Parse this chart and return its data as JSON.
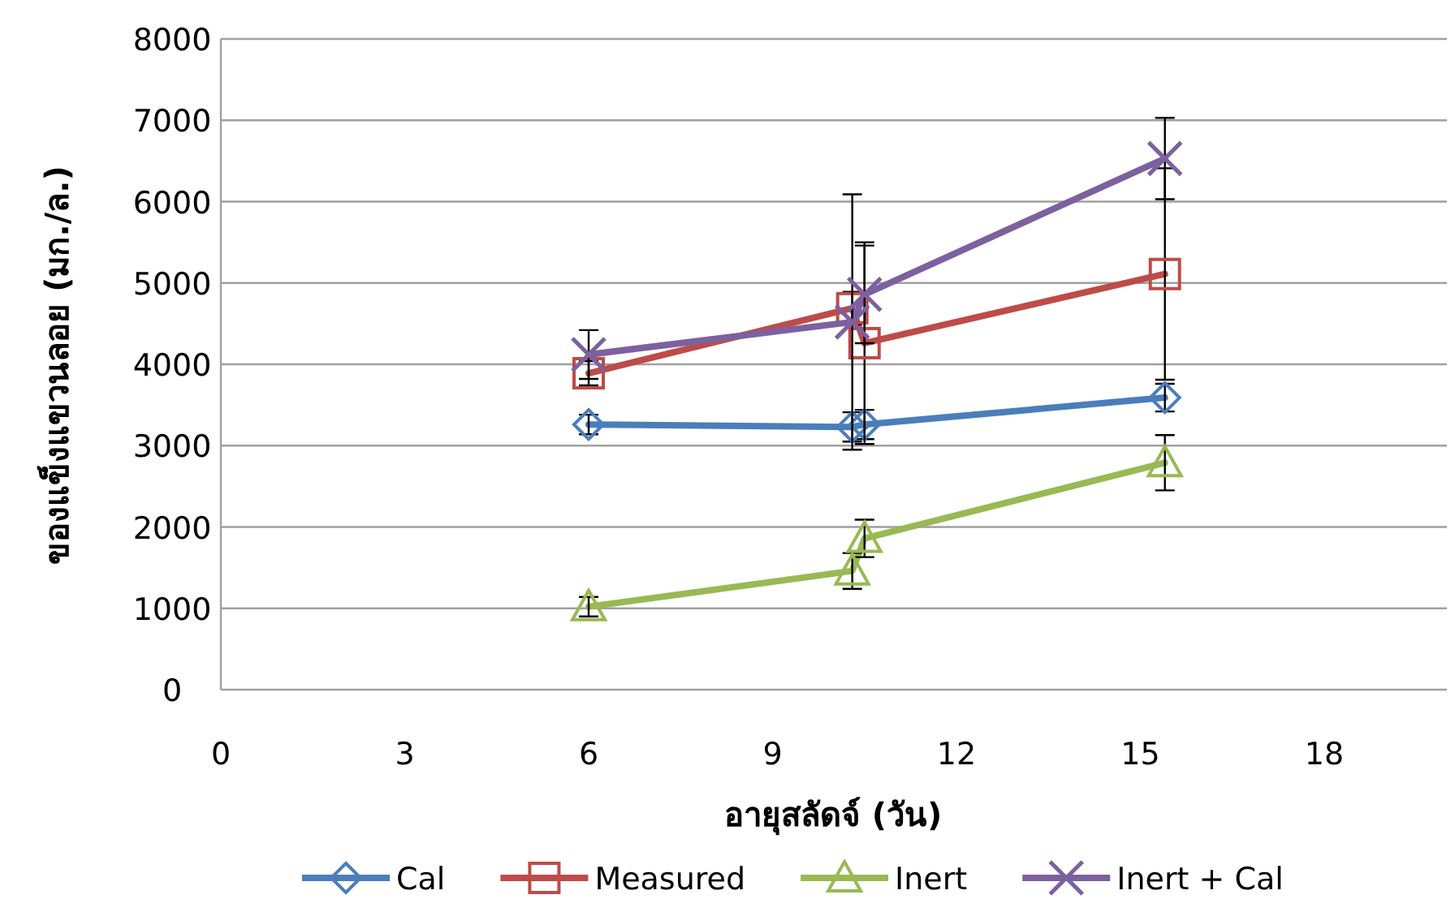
{
  "chart_data": {
    "type": "line",
    "xlabel": "อายุสลัดจ์ (วัน)",
    "ylabel": "ของแข็งแขวนลอย (มก./ล.)",
    "xlim": [
      0,
      20
    ],
    "ylim": [
      0,
      8000
    ],
    "xticks": [
      0,
      3,
      6,
      9,
      12,
      15,
      18
    ],
    "yticks": [
      0,
      1000,
      2000,
      3000,
      4000,
      5000,
      6000,
      7000,
      8000
    ],
    "grid": "y",
    "legend": "bottom",
    "line_style": "solid",
    "series": [
      {
        "name": "Cal",
        "color": "#4a7ebb",
        "marker": "diamond",
        "x": [
          6,
          10.3,
          10.5,
          15.4
        ],
        "values": [
          3260,
          3230,
          3260,
          3590
        ],
        "errors": [
          120,
          180,
          180,
          170
        ]
      },
      {
        "name": "Measured",
        "color": "#be4b48",
        "marker": "square",
        "x": [
          6,
          10.3,
          10.5,
          15.4
        ],
        "values": [
          3890,
          4690,
          4260,
          5110
        ],
        "errors": [
          150,
          200,
          1240,
          1300
        ]
      },
      {
        "name": "Inert",
        "color": "#98b954",
        "marker": "triangle",
        "x": [
          6,
          10.3,
          10.5,
          15.4
        ],
        "values": [
          1020,
          1460,
          1860,
          2790
        ],
        "errors": [
          120,
          220,
          230,
          340
        ]
      },
      {
        "name": "Inert + Cal",
        "color": "#7d60a0",
        "marker": "cross",
        "x": [
          6,
          10.3,
          10.5,
          15.4
        ],
        "values": [
          4120,
          4520,
          4860,
          6530
        ],
        "errors": [
          300,
          1570,
          600,
          500
        ]
      }
    ]
  }
}
